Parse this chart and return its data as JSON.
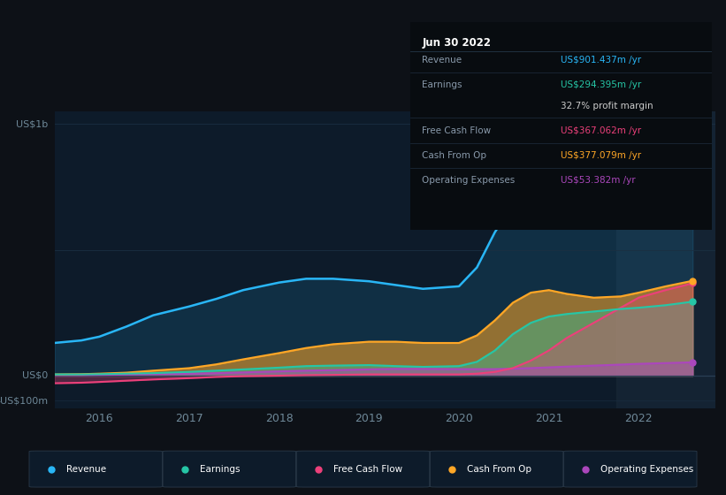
{
  "bg_color": "#0d1117",
  "plot_bg_color": "#0d1b2a",
  "revenue_color": "#29b6f6",
  "earnings_color": "#26c6a6",
  "free_cash_flow_color": "#ec407a",
  "cash_from_op_color": "#ffa726",
  "op_expenses_color": "#ab47bc",
  "tick_color": "#6e8898",
  "years_arr": [
    2015.5,
    2015.8,
    2016.0,
    2016.3,
    2016.6,
    2017.0,
    2017.3,
    2017.6,
    2018.0,
    2018.3,
    2018.6,
    2019.0,
    2019.3,
    2019.6,
    2020.0,
    2020.2,
    2020.4,
    2020.6,
    2020.8,
    2021.0,
    2021.2,
    2021.5,
    2021.8,
    2022.0,
    2022.3,
    2022.6
  ],
  "rev": [
    130,
    140,
    155,
    195,
    240,
    275,
    305,
    340,
    370,
    385,
    385,
    375,
    360,
    345,
    355,
    430,
    570,
    680,
    740,
    760,
    740,
    720,
    730,
    760,
    840,
    901
  ],
  "earn": [
    5,
    5,
    6,
    8,
    10,
    15,
    20,
    25,
    32,
    38,
    40,
    42,
    38,
    35,
    38,
    55,
    100,
    165,
    210,
    235,
    245,
    255,
    265,
    270,
    280,
    294
  ],
  "fcf": [
    -30,
    -28,
    -25,
    -20,
    -15,
    -10,
    -5,
    -2,
    0,
    2,
    3,
    5,
    5,
    5,
    5,
    8,
    15,
    30,
    60,
    100,
    150,
    210,
    270,
    310,
    340,
    367
  ],
  "cop": [
    5,
    6,
    8,
    12,
    20,
    30,
    45,
    65,
    90,
    110,
    125,
    135,
    135,
    130,
    130,
    160,
    220,
    290,
    330,
    340,
    325,
    310,
    315,
    330,
    355,
    377
  ],
  "oexp": [
    2,
    2,
    3,
    4,
    6,
    8,
    10,
    13,
    17,
    20,
    22,
    25,
    27,
    27,
    26,
    26,
    26,
    28,
    30,
    33,
    36,
    40,
    44,
    47,
    50,
    53
  ],
  "highlight_start": 2021.75,
  "xlim": [
    2015.5,
    2022.85
  ],
  "ylim": [
    -130,
    1050
  ],
  "xticks": [
    2016,
    2017,
    2018,
    2019,
    2020,
    2021,
    2022
  ],
  "tooltip_title": "Jun 30 2022",
  "tooltip_rows": [
    {
      "label": "Revenue",
      "value": "US$901.437m /yr",
      "value_color": "#29b6f6",
      "label_color": "#8899aa"
    },
    {
      "label": "Earnings",
      "value": "US$294.395m /yr",
      "value_color": "#26c6a6",
      "label_color": "#8899aa"
    },
    {
      "label": "",
      "value": "32.7% profit margin",
      "value_color": "#cccccc",
      "label_color": ""
    },
    {
      "label": "Free Cash Flow",
      "value": "US$367.062m /yr",
      "value_color": "#ec407a",
      "label_color": "#8899aa"
    },
    {
      "label": "Cash From Op",
      "value": "US$377.079m /yr",
      "value_color": "#ffa726",
      "label_color": "#8899aa"
    },
    {
      "label": "Operating Expenses",
      "value": "US$53.382m /yr",
      "value_color": "#ab47bc",
      "label_color": "#8899aa"
    }
  ],
  "legend_items": [
    {
      "label": "Revenue",
      "color": "#29b6f6"
    },
    {
      "label": "Earnings",
      "color": "#26c6a6"
    },
    {
      "label": "Free Cash Flow",
      "color": "#ec407a"
    },
    {
      "label": "Cash From Op",
      "color": "#ffa726"
    },
    {
      "label": "Operating Expenses",
      "color": "#ab47bc"
    }
  ]
}
